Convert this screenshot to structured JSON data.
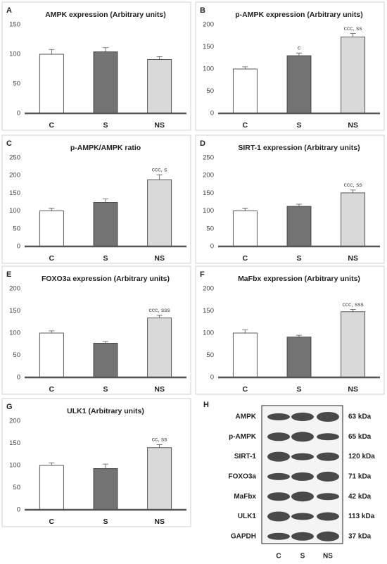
{
  "chart_data": [
    {
      "label": "A",
      "type": "bar",
      "title": "AMPK expression (Arbitrary units)",
      "categories": [
        "C",
        "S",
        "NS"
      ],
      "values": [
        100,
        104,
        91
      ],
      "errors": [
        8,
        7,
        5
      ],
      "annotations": [
        null,
        null,
        null
      ],
      "colors": [
        "#ffffff",
        "#737373",
        "#d9d9d9"
      ],
      "ylim": [
        0,
        150
      ],
      "yticks": [
        0,
        50,
        100,
        150
      ]
    },
    {
      "label": "B",
      "type": "bar",
      "title": "p-AMPK expression (Arbitrary units)",
      "categories": [
        "C",
        "S",
        "NS"
      ],
      "values": [
        100,
        130,
        172
      ],
      "errors": [
        5,
        6,
        8
      ],
      "annotations": [
        null,
        "c",
        "ccc, ss"
      ],
      "colors": [
        "#ffffff",
        "#737373",
        "#d9d9d9"
      ],
      "ylim": [
        0,
        200
      ],
      "yticks": [
        0,
        50,
        100,
        150,
        200
      ]
    },
    {
      "label": "C",
      "type": "bar",
      "title": "p-AMPK/AMPK ratio",
      "categories": [
        "C",
        "S",
        "NS"
      ],
      "values": [
        100,
        124,
        188
      ],
      "errors": [
        7,
        10,
        14
      ],
      "annotations": [
        null,
        null,
        "ccc, s"
      ],
      "colors": [
        "#ffffff",
        "#737373",
        "#d9d9d9"
      ],
      "ylim": [
        0,
        250
      ],
      "yticks": [
        0,
        50,
        100,
        150,
        200,
        250
      ]
    },
    {
      "label": "D",
      "type": "bar",
      "title": "SIRT-1 expression (Arbitrary units)",
      "categories": [
        "C",
        "S",
        "NS"
      ],
      "values": [
        100,
        113,
        151
      ],
      "errors": [
        7,
        6,
        8
      ],
      "annotations": [
        null,
        null,
        "ccc, ss"
      ],
      "colors": [
        "#ffffff",
        "#737373",
        "#d9d9d9"
      ],
      "ylim": [
        0,
        250
      ],
      "yticks": [
        0,
        50,
        100,
        150,
        200,
        250
      ]
    },
    {
      "label": "E",
      "type": "bar",
      "title": "FOXO3a expression (Arbitrary units)",
      "categories": [
        "C",
        "S",
        "NS"
      ],
      "values": [
        100,
        77,
        134
      ],
      "errors": [
        5,
        4,
        6
      ],
      "annotations": [
        null,
        null,
        "ccc, sss"
      ],
      "colors": [
        "#ffffff",
        "#737373",
        "#d9d9d9"
      ],
      "ylim": [
        0,
        200
      ],
      "yticks": [
        0,
        50,
        100,
        150,
        200
      ]
    },
    {
      "label": "F",
      "type": "bar",
      "title": "MaFbx expression (Arbitrary units)",
      "categories": [
        "C",
        "S",
        "NS"
      ],
      "values": [
        100,
        91,
        148
      ],
      "errors": [
        7,
        4,
        5
      ],
      "annotations": [
        null,
        null,
        "ccc, sss"
      ],
      "colors": [
        "#ffffff",
        "#737373",
        "#d9d9d9"
      ],
      "ylim": [
        0,
        200
      ],
      "yticks": [
        0,
        50,
        100,
        150,
        200
      ]
    },
    {
      "label": "G",
      "type": "bar",
      "title": "ULK1 (Arbitrary units)",
      "categories": [
        "C",
        "S",
        "NS"
      ],
      "values": [
        100,
        93,
        140
      ],
      "errors": [
        6,
        10,
        7
      ],
      "annotations": [
        null,
        null,
        "cc, ss"
      ],
      "colors": [
        "#ffffff",
        "#737373",
        "#d9d9d9"
      ],
      "ylim": [
        0,
        200
      ],
      "yticks": [
        0,
        50,
        100,
        150,
        200
      ]
    }
  ],
  "blot": {
    "label": "H",
    "rows": [
      {
        "protein": "AMPK",
        "size": "63 kDa"
      },
      {
        "protein": "p-AMPK",
        "size": "65 kDa"
      },
      {
        "protein": "SIRT-1",
        "size": "120 kDa"
      },
      {
        "protein": "FOXO3a",
        "size": "71 kDa"
      },
      {
        "protein": "MaFbx",
        "size": "42 kDa"
      },
      {
        "protein": "ULK1",
        "size": "113 kDa"
      },
      {
        "protein": "GAPDH",
        "size": "37 kDa"
      }
    ],
    "lanes": [
      "C",
      "S",
      "NS"
    ]
  }
}
